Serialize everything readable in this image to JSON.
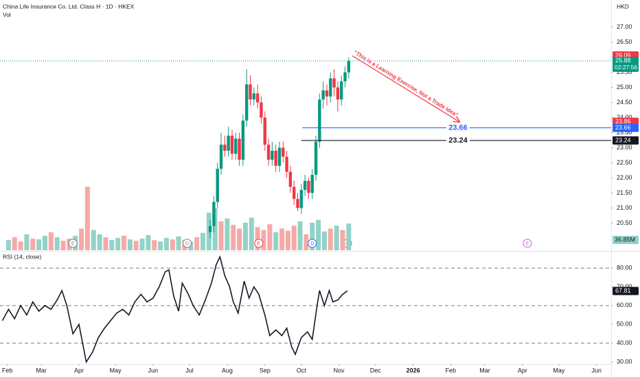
{
  "chart_data": [
    {
      "type": "candlestick",
      "title": "China Life Insurance Co. Ltd. Class H · 1D · HKEX",
      "volume_title": "Vol",
      "currency": "HKD",
      "up_color": "#089981",
      "down_color": "#f23645",
      "x": [
        198,
        201,
        204,
        207,
        210,
        213,
        216,
        219,
        222,
        225,
        228,
        231,
        234,
        237,
        240,
        243,
        246,
        249,
        252,
        255,
        258,
        261,
        264,
        267,
        270,
        273,
        276,
        279,
        282,
        285,
        288,
        291,
        294,
        297,
        300,
        303,
        306,
        309,
        312
      ],
      "open": [
        20.2,
        20.4,
        21.2,
        22.3,
        23.1,
        22.9,
        23.4,
        22.8,
        23.3,
        22.6,
        23.9,
        25.1,
        24.6,
        24.8,
        24.5,
        24.0,
        23.1,
        22.6,
        22.9,
        22.4,
        23.0,
        22.7,
        22.2,
        21.7,
        21.3,
        21.0,
        21.6,
        21.9,
        21.5,
        22.1,
        23.2,
        24.6,
        24.9,
        24.7,
        25.3,
        25.0,
        24.6,
        25.2,
        25.5
      ],
      "high": [
        20.6,
        21.4,
        22.5,
        23.5,
        23.4,
        23.7,
        23.6,
        23.5,
        23.5,
        24.1,
        25.6,
        25.4,
        25.0,
        25.1,
        24.7,
        24.2,
        23.3,
        23.2,
        23.1,
        23.2,
        23.2,
        22.9,
        22.4,
        21.9,
        21.5,
        21.8,
        22.1,
        22.0,
        22.3,
        23.4,
        24.8,
        25.2,
        25.1,
        25.5,
        25.6,
        25.2,
        25.4,
        25.7,
        26.0
      ],
      "low": [
        20.0,
        20.2,
        21.0,
        22.1,
        22.7,
        22.7,
        22.6,
        22.6,
        22.4,
        22.4,
        23.7,
        24.4,
        24.4,
        24.3,
        23.8,
        22.9,
        22.4,
        22.4,
        22.2,
        22.2,
        22.5,
        22.0,
        21.5,
        21.1,
        20.9,
        20.8,
        21.4,
        21.3,
        21.3,
        21.9,
        23.0,
        24.3,
        24.4,
        24.5,
        24.7,
        24.2,
        24.4,
        25.0,
        25.3
      ],
      "close": [
        20.4,
        21.2,
        22.3,
        23.1,
        22.9,
        23.4,
        22.8,
        23.3,
        22.6,
        23.9,
        25.1,
        24.6,
        24.8,
        24.5,
        24.0,
        23.1,
        22.6,
        22.9,
        22.4,
        23.0,
        22.7,
        22.2,
        21.7,
        21.3,
        21.0,
        21.6,
        21.9,
        21.5,
        22.1,
        23.2,
        24.6,
        24.9,
        24.7,
        25.3,
        25.0,
        24.6,
        25.2,
        25.5,
        25.88
      ],
      "ylim": [
        19.6,
        27.9
      ],
      "yticks": [
        {
          "value": 20.5,
          "label": "20.50"
        },
        {
          "value": 21,
          "label": "21.00"
        },
        {
          "value": 21.5,
          "label": "21.50"
        },
        {
          "value": 22,
          "label": "22.00"
        },
        {
          "value": 22.5,
          "label": "22.50"
        },
        {
          "value": 23,
          "label": "23.00"
        },
        {
          "value": 23.5,
          "label": "23.50"
        },
        {
          "value": 24,
          "label": "24.00"
        },
        {
          "value": 24.5,
          "label": "24.50"
        },
        {
          "value": 25,
          "label": "25.00"
        },
        {
          "value": 25.5,
          "label": "25.50"
        },
        {
          "value": 26,
          "label": "26.00"
        },
        {
          "value": 26.5,
          "label": "26.50"
        },
        {
          "value": 27,
          "label": "27.00"
        }
      ],
      "xlim": [
        25,
        528
      ],
      "xticks": [
        {
          "value": 31,
          "label": "Feb"
        },
        {
          "value": 59,
          "label": "Mar"
        },
        {
          "value": 90,
          "label": "Apr"
        },
        {
          "value": 120,
          "label": "May"
        },
        {
          "value": 151,
          "label": "Jun"
        },
        {
          "value": 181,
          "label": "Jul"
        },
        {
          "value": 212,
          "label": "Aug"
        },
        {
          "value": 243,
          "label": "Sep"
        },
        {
          "value": 273,
          "label": "Oct"
        },
        {
          "value": 304,
          "label": "Nov"
        },
        {
          "value": 334,
          "label": "Dec"
        },
        {
          "value": 365,
          "label": "2026"
        },
        {
          "value": 396,
          "label": "Feb"
        },
        {
          "value": 424,
          "label": "Mar"
        },
        {
          "value": 455,
          "label": "Apr"
        },
        {
          "value": 485,
          "label": "May"
        },
        {
          "value": 516,
          "label": "Jun"
        }
      ],
      "volume": {
        "x": [
          32,
          37,
          42,
          47,
          52,
          57,
          62,
          67,
          72,
          77,
          82,
          87,
          92,
          97,
          102,
          107,
          112,
          117,
          122,
          127,
          132,
          137,
          142,
          147,
          152,
          157,
          162,
          167,
          172,
          177,
          182,
          187,
          192,
          197,
          202,
          207,
          212,
          217,
          222,
          227,
          232,
          237,
          242,
          247,
          252,
          257,
          262,
          267,
          272,
          277,
          282,
          287,
          292,
          297,
          302,
          307,
          312
        ],
        "values": [
          14,
          18,
          12,
          22,
          16,
          15,
          20,
          25,
          18,
          13,
          16,
          20,
          30,
          88,
          28,
          22,
          18,
          14,
          17,
          20,
          15,
          13,
          16,
          21,
          14,
          12,
          17,
          15,
          19,
          14,
          12,
          18,
          24,
          52,
          58,
          40,
          44,
          35,
          30,
          38,
          45,
          32,
          28,
          36,
          25,
          30,
          27,
          34,
          40,
          22,
          38,
          42,
          26,
          30,
          34,
          28,
          36.85
        ],
        "colors": [
          "#92d2c7",
          "#f7a9a7",
          "#f7a9a7",
          "#92d2c7",
          "#f7a9a7",
          "#92d2c7",
          "#92d2c7",
          "#f7a9a7",
          "#92d2c7",
          "#f7a9a7",
          "#f7a9a7",
          "#92d2c7",
          "#f7a9a7",
          "#f7a9a7",
          "#92d2c7",
          "#92d2c7",
          "#f7a9a7",
          "#92d2c7",
          "#92d2c7",
          "#f7a9a7",
          "#92d2c7",
          "#f7a9a7",
          "#92d2c7",
          "#92d2c7",
          "#f7a9a7",
          "#92d2c7",
          "#92d2c7",
          "#f7a9a7",
          "#92d2c7",
          "#f7a9a7",
          "#92d2c7",
          "#f7a9a7",
          "#92d2c7",
          "#92d2c7",
          "#92d2c7",
          "#f7a9a7",
          "#92d2c7",
          "#f7a9a7",
          "#f7a9a7",
          "#92d2c7",
          "#92d2c7",
          "#f7a9a7",
          "#f7a9a7",
          "#f7a9a7",
          "#92d2c7",
          "#f7a9a7",
          "#f7a9a7",
          "#f7a9a7",
          "#92d2c7",
          "#f7a9a7",
          "#92d2c7",
          "#92d2c7",
          "#92d2c7",
          "#f7a9a7",
          "#92d2c7",
          "#f7a9a7",
          "#92d2c7"
        ],
        "ylim": [
          0,
          95
        ],
        "last_label": "36.85M"
      },
      "price_labels": [
        {
          "value": 26.06,
          "color": "#f23645"
        },
        {
          "value": 25.88,
          "color": "#089981",
          "countdown": "02:27:56"
        },
        {
          "value": 23.86,
          "color": "#f23645"
        },
        {
          "value": 23.66,
          "color": "#2962ff"
        },
        {
          "value": 23.24,
          "color": "#131722"
        }
      ],
      "hlines": [
        {
          "value": 23.66,
          "color": "#2962ff",
          "start": 274
        },
        {
          "value": 23.24,
          "color": "#131722",
          "start": 273
        }
      ],
      "annotation": {
        "text": "“This is a Learning Exercise, Not a Trade Idea”",
        "color": "#f23645",
        "from": [
          315,
          26.05
        ],
        "to": [
          403,
          23.86
        ]
      },
      "events": [
        {
          "x": 85,
          "label": "E",
          "color": "#787b86"
        },
        {
          "x": 179,
          "label": "D",
          "color": "#787b86"
        },
        {
          "x": 238,
          "label": "E",
          "color": "#f23645"
        },
        {
          "x": 282,
          "label": "D",
          "color": "#2962ff"
        },
        {
          "x": 459,
          "label": "E",
          "color": "#ba68c8"
        }
      ]
    },
    {
      "type": "line",
      "title": "RSI (14, close)",
      "color": "#131722",
      "x": [
        27,
        32,
        37,
        42,
        47,
        52,
        57,
        62,
        67,
        72,
        76,
        80,
        85,
        90,
        96,
        101,
        106,
        111,
        116,
        121,
        126,
        131,
        136,
        141,
        146,
        151,
        156,
        161,
        164,
        168,
        172,
        175,
        180,
        184,
        189,
        194,
        199,
        203,
        206,
        210,
        214,
        217,
        221,
        226,
        230,
        234,
        238,
        243,
        247,
        252,
        257,
        261,
        265,
        268,
        273,
        278,
        282,
        286,
        288,
        292,
        296,
        299,
        303,
        307,
        311
      ],
      "values": [
        52,
        58,
        53,
        60,
        55,
        62,
        57,
        60,
        58,
        63,
        68,
        60,
        45,
        50,
        30,
        35,
        43,
        48,
        52,
        56,
        58,
        55,
        62,
        66,
        62,
        64,
        70,
        78,
        79,
        65,
        57,
        72,
        66,
        60,
        55,
        63,
        72,
        82,
        86,
        76,
        70,
        62,
        56,
        73,
        64,
        70,
        66,
        55,
        44,
        47,
        44,
        48,
        38,
        34,
        43,
        46,
        42,
        60,
        68,
        60,
        68,
        62,
        63,
        66,
        67.81
      ],
      "ylim": [
        25.6,
        87.7
      ],
      "yticks": [
        {
          "value": 30,
          "label": "30.00"
        },
        {
          "value": 40,
          "label": "40.00"
        },
        {
          "value": 50,
          "label": "50.00"
        },
        {
          "value": 60,
          "label": "60.00"
        },
        {
          "value": 70,
          "label": "70.00"
        },
        {
          "value": 80,
          "label": "80.00"
        }
      ],
      "bands": [
        80,
        60,
        40
      ]
    }
  ]
}
